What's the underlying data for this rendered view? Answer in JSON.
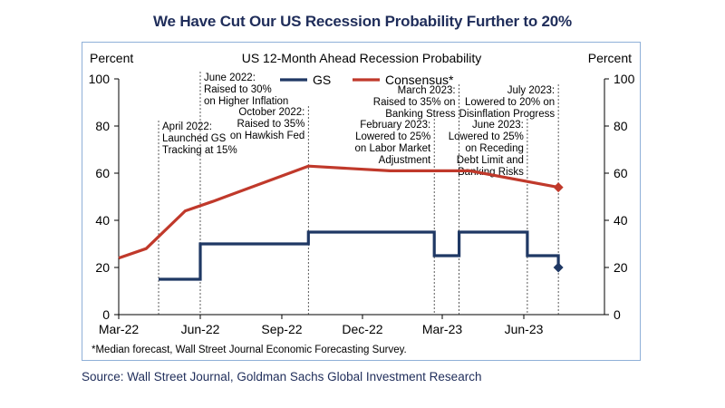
{
  "headline": "We Have Cut Our US Recession Probability Further to 20%",
  "source": "Source: Wall Street Journal, Goldman Sachs Global Investment Research",
  "colors": {
    "gs": "#1f3864",
    "consensus": "#c0392b",
    "headline": "#1f2d5a",
    "panel_border": "#8fb0d8"
  },
  "chart_data": {
    "type": "line",
    "title": "US 12-Month Ahead Recession Probability",
    "ylabel_left": "Percent",
    "ylabel_right": "Percent",
    "ylim": [
      0,
      100
    ],
    "yticks": [
      0,
      20,
      40,
      60,
      80,
      100
    ],
    "xlim": [
      "2022-03-01",
      "2023-08-31"
    ],
    "xticks": [
      {
        "date": "2022-03-01",
        "label": "Mar-22"
      },
      {
        "date": "2022-06-01",
        "label": "Jun-22"
      },
      {
        "date": "2022-09-01",
        "label": "Sep-22"
      },
      {
        "date": "2022-12-01",
        "label": "Dec-22"
      },
      {
        "date": "2023-03-01",
        "label": "Mar-23"
      },
      {
        "date": "2023-06-01",
        "label": "Jun-23"
      }
    ],
    "legend": [
      "GS",
      "Consensus*"
    ],
    "legend_position": "top-center",
    "series": [
      {
        "name": "GS",
        "style": "step",
        "points": [
          {
            "x": "2022-04-15",
            "y": 15
          },
          {
            "x": "2022-06-01",
            "y": 15
          },
          {
            "x": "2022-06-01",
            "y": 30
          },
          {
            "x": "2022-10-01",
            "y": 30
          },
          {
            "x": "2022-10-01",
            "y": 35
          },
          {
            "x": "2023-02-20",
            "y": 35
          },
          {
            "x": "2023-02-20",
            "y": 25
          },
          {
            "x": "2023-03-20",
            "y": 25
          },
          {
            "x": "2023-03-20",
            "y": 35
          },
          {
            "x": "2023-06-05",
            "y": 35
          },
          {
            "x": "2023-06-05",
            "y": 25
          },
          {
            "x": "2023-07-10",
            "y": 25
          },
          {
            "x": "2023-07-10",
            "y": 20
          }
        ],
        "end_marker": "diamond"
      },
      {
        "name": "Consensus*",
        "style": "line",
        "points": [
          {
            "x": "2022-03-01",
            "y": 24
          },
          {
            "x": "2022-04-01",
            "y": 28
          },
          {
            "x": "2022-05-15",
            "y": 44
          },
          {
            "x": "2022-06-15",
            "y": 48
          },
          {
            "x": "2022-10-01",
            "y": 63
          },
          {
            "x": "2023-01-01",
            "y": 61
          },
          {
            "x": "2023-02-15",
            "y": 61
          },
          {
            "x": "2023-04-01",
            "y": 61
          },
          {
            "x": "2023-07-10",
            "y": 54
          }
        ],
        "end_marker": "diamond"
      }
    ],
    "annotations": [
      {
        "date": "2022-04-15",
        "lines": [
          "April 2022:",
          "Launched GS",
          "Tracking at 15%"
        ],
        "anchor": "left",
        "top": 96
      },
      {
        "date": "2022-06-01",
        "lines": [
          "June 2022:",
          "Raised to 30%",
          "on Higher Inflation"
        ],
        "anchor": "left",
        "top": 42
      },
      {
        "date": "2022-10-01",
        "lines": [
          "October 2022:",
          "Raised to 35%",
          "on Hawkish Fed"
        ],
        "anchor": "right",
        "top": 80
      },
      {
        "date": "2023-02-20",
        "lines": [
          "February 2023:",
          "Lowered to 25%",
          "on Labor Market",
          "Adjustment"
        ],
        "anchor": "right",
        "top": 94
      },
      {
        "date": "2023-03-20",
        "lines": [
          "March 2023:",
          "Raised to 35% on",
          "Banking Stress"
        ],
        "anchor": "right",
        "top": 56
      },
      {
        "date": "2023-06-05",
        "lines": [
          "June 2023:",
          "Lowered to 25%",
          "on Receding",
          "Debt Limit and",
          "Banking Risks"
        ],
        "anchor": "right",
        "top": 94
      },
      {
        "date": "2023-07-10",
        "lines": [
          "July 2023:",
          "Lowered to 20% on",
          "Disinflation Progress"
        ],
        "anchor": "right",
        "top": 56
      }
    ],
    "footnote": "*Median forecast, Wall Street Journal Economic Forecasting Survey."
  }
}
